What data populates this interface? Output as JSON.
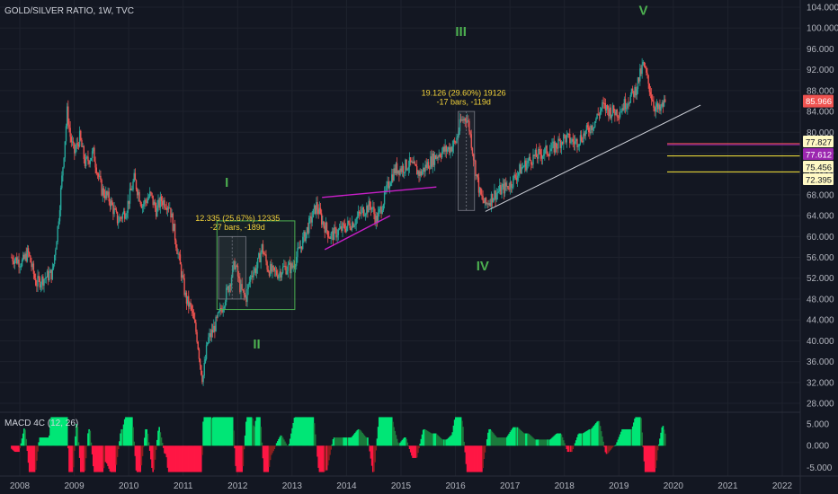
{
  "header": {
    "title": "GOLD/SILVER RATIO, 1W, TVC"
  },
  "colors": {
    "background": "#131722",
    "up": "#26a69a",
    "down": "#ef5350",
    "wave_label": "#4caf50",
    "measure_text": "#f3d33a",
    "channel": "#c71fc7",
    "trendline": "#d1d4dc",
    "box": "#4caf50",
    "macd_up_strong": "#00e676",
    "macd_up_weak": "#1b7a3c",
    "macd_down_strong": "#ff1744",
    "macd_down_weak": "#8b1e1e"
  },
  "chart_data": {
    "type": "candlestick",
    "title": "GOLD/SILVER RATIO, 1W, TVC",
    "x_axis_labels": [
      "2008",
      "2009",
      "2010",
      "2011",
      "2012",
      "2013",
      "2014",
      "2015",
      "2016",
      "2017",
      "2018",
      "2019",
      "2020",
      "2021",
      "2022"
    ],
    "y_axis_labels": [
      "104.000",
      "100.000",
      "96.000",
      "92.000",
      "88.000",
      "84.000",
      "80.000",
      "76.000",
      "72.000",
      "68.000",
      "64.000",
      "60.000",
      "56.000",
      "52.000",
      "48.000",
      "44.000",
      "40.000",
      "36.000",
      "32.000",
      "28.000"
    ],
    "ylim": [
      26,
      106
    ],
    "xlim": [
      2007.85,
      2022.5
    ],
    "series_path": [
      [
        2007.85,
        56
      ],
      [
        2008.05,
        55
      ],
      [
        2008.15,
        57
      ],
      [
        2008.3,
        51
      ],
      [
        2008.45,
        52
      ],
      [
        2008.6,
        53
      ],
      [
        2008.7,
        62
      ],
      [
        2008.78,
        72
      ],
      [
        2008.87,
        84
      ],
      [
        2008.93,
        79
      ],
      [
        2009.0,
        76
      ],
      [
        2009.1,
        79
      ],
      [
        2009.2,
        74
      ],
      [
        2009.35,
        76
      ],
      [
        2009.5,
        69
      ],
      [
        2009.65,
        67
      ],
      [
        2009.8,
        63
      ],
      [
        2009.95,
        65
      ],
      [
        2010.1,
        71
      ],
      [
        2010.25,
        66
      ],
      [
        2010.4,
        68
      ],
      [
        2010.5,
        65
      ],
      [
        2010.6,
        67
      ],
      [
        2010.75,
        66
      ],
      [
        2010.85,
        60
      ],
      [
        2010.95,
        54
      ],
      [
        2011.05,
        48
      ],
      [
        2011.15,
        46
      ],
      [
        2011.25,
        41
      ],
      [
        2011.32,
        35
      ],
      [
        2011.36,
        32.5
      ],
      [
        2011.45,
        40
      ],
      [
        2011.55,
        42
      ],
      [
        2011.7,
        46
      ],
      [
        2011.85,
        51
      ],
      [
        2011.95,
        55
      ],
      [
        2012.05,
        50
      ],
      [
        2012.15,
        48
      ],
      [
        2012.25,
        53
      ],
      [
        2012.35,
        54
      ],
      [
        2012.45,
        58
      ],
      [
        2012.55,
        54
      ],
      [
        2012.65,
        53
      ],
      [
        2012.75,
        53
      ],
      [
        2012.85,
        54
      ],
      [
        2013.0,
        54
      ],
      [
        2013.15,
        58
      ],
      [
        2013.3,
        62
      ],
      [
        2013.45,
        66
      ],
      [
        2013.55,
        63
      ],
      [
        2013.7,
        60
      ],
      [
        2013.85,
        61
      ],
      [
        2014.0,
        62
      ],
      [
        2014.15,
        63
      ],
      [
        2014.3,
        65
      ],
      [
        2014.45,
        66
      ],
      [
        2014.55,
        63
      ],
      [
        2014.65,
        66
      ],
      [
        2014.8,
        71
      ],
      [
        2014.9,
        73
      ],
      [
        2015.0,
        73
      ],
      [
        2015.15,
        74
      ],
      [
        2015.35,
        72
      ],
      [
        2015.5,
        74
      ],
      [
        2015.7,
        76
      ],
      [
        2015.9,
        77
      ],
      [
        2016.0,
        78
      ],
      [
        2016.1,
        82
      ],
      [
        2016.2,
        83
      ],
      [
        2016.25,
        81
      ],
      [
        2016.35,
        74
      ],
      [
        2016.45,
        68
      ],
      [
        2016.55,
        66
      ],
      [
        2016.7,
        68
      ],
      [
        2016.85,
        69
      ],
      [
        2017.0,
        70
      ],
      [
        2017.2,
        73
      ],
      [
        2017.4,
        75
      ],
      [
        2017.6,
        76
      ],
      [
        2017.8,
        77
      ],
      [
        2018.0,
        79
      ],
      [
        2018.2,
        78
      ],
      [
        2018.4,
        80
      ],
      [
        2018.55,
        82
      ],
      [
        2018.7,
        85
      ],
      [
        2018.85,
        84
      ],
      [
        2019.0,
        84
      ],
      [
        2019.15,
        86
      ],
      [
        2019.3,
        88
      ],
      [
        2019.45,
        93
      ],
      [
        2019.55,
        89
      ],
      [
        2019.65,
        85
      ],
      [
        2019.75,
        84
      ],
      [
        2019.85,
        85.966
      ]
    ],
    "last_price": "85.966",
    "wave_labels": [
      {
        "text": "I",
        "x": 2011.8,
        "y": 69.5
      },
      {
        "text": "II",
        "x": 2012.35,
        "y": 38.5
      },
      {
        "text": "III",
        "x": 2016.1,
        "y": 98.5
      },
      {
        "text": "IV",
        "x": 2016.5,
        "y": 53.5
      },
      {
        "text": "V",
        "x": 2019.45,
        "y": 102.5
      }
    ],
    "measurements": [
      {
        "line1": "12.335 (25.67%) 12335",
        "line2": "-27 bars, -189d",
        "x": 2012.0,
        "y": 63.0
      },
      {
        "line1": "19.126 (29.60%) 19126",
        "line2": "-17 bars, -119d",
        "x": 2016.15,
        "y": 87.0
      }
    ],
    "measure_boxes": [
      {
        "x0": 2011.65,
        "x1": 2012.15,
        "y0": 48,
        "y1": 60
      },
      {
        "x0": 2016.05,
        "x1": 2016.35,
        "y0": 65,
        "y1": 84
      }
    ],
    "green_box": {
      "x0": 2011.62,
      "x1": 2013.05,
      "y0": 46,
      "y1": 63
    },
    "channel_lines": [
      {
        "x0": 2013.55,
        "y0": 67.5,
        "x1": 2015.65,
        "y1": 69.5
      },
      {
        "x0": 2013.6,
        "y0": 57.5,
        "x1": 2014.8,
        "y1": 64
      }
    ],
    "trendline": {
      "x0": 2016.55,
      "y0": 64.8,
      "x1": 2020.5,
      "y1": 85.2
    },
    "price_levels": [
      {
        "value": "77.827",
        "color": "#ef5350",
        "bg": "#fff9c4",
        "fg": "#131722",
        "y": 77.827
      },
      {
        "value": "77.612",
        "color": "#9c27b0",
        "bg": "#9c27b0",
        "fg": "#ffffff",
        "y": 77.612
      },
      {
        "value": "75.456",
        "color": "#ffeb3b",
        "bg": "#fff9c4",
        "fg": "#131722",
        "y": 75.456
      },
      {
        "value": "72.395",
        "color": "#ffeb3b",
        "bg": "#fff9c4",
        "fg": "#131722",
        "y": 72.395
      }
    ],
    "level_label_y": [
      158,
      172,
      186,
      200
    ]
  },
  "macd": {
    "title": "MACD 4C (12, 26)",
    "y_axis_labels": [
      "5.000",
      "0.000",
      "-5.000"
    ],
    "ylim": [
      -6.5,
      7
    ]
  }
}
